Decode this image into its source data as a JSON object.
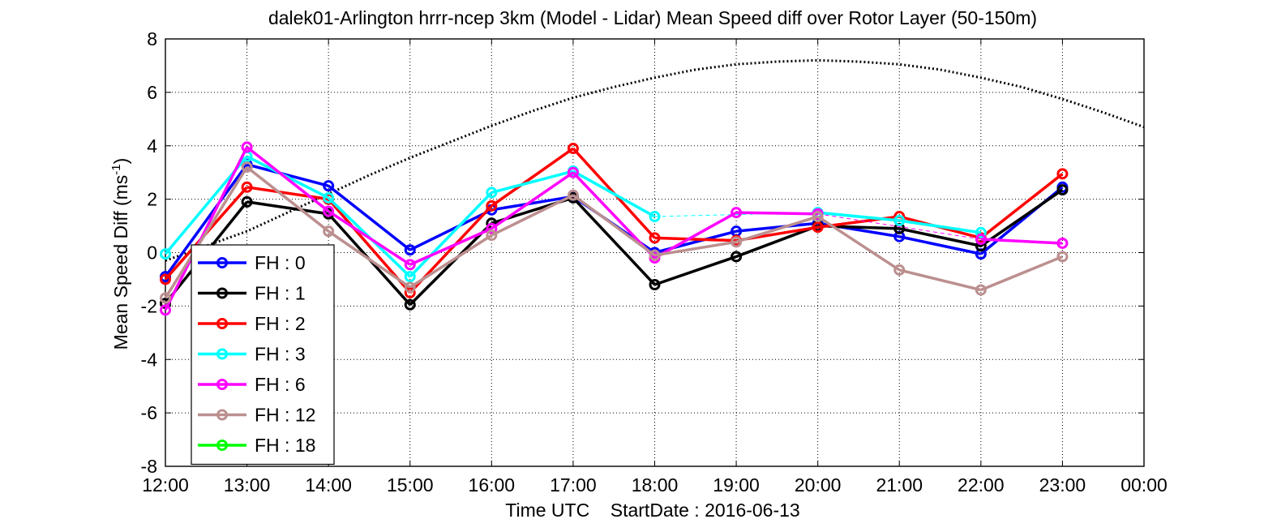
{
  "chart_data": {
    "type": "line",
    "title": "dalek01-Arlington hrrr-ncep 3km (Model - Lidar) Mean Speed diff over Rotor Layer (50-150m)",
    "xlabel": "Time UTC    StartDate : 2016-06-13",
    "ylabel": {
      "prefix": "Mean Speed Diff (ms",
      "superscript": "-1",
      "suffix": ")"
    },
    "x_ticks": [
      "12:00",
      "13:00",
      "14:00",
      "15:00",
      "16:00",
      "17:00",
      "18:00",
      "19:00",
      "20:00",
      "21:00",
      "22:00",
      "23:00",
      "00:00"
    ],
    "xlim": [
      0,
      12
    ],
    "y_ticks": [
      "8",
      "6",
      "4",
      "2",
      "0",
      "-2",
      "-4",
      "-6",
      "-8"
    ],
    "ylim": [
      -8,
      8
    ],
    "grid": true,
    "legend_position": "bottom-left",
    "series": [
      {
        "name": "FH : 0",
        "color": "#0000ff",
        "values": [
          -0.9,
          3.3,
          2.5,
          0.1,
          1.6,
          2.1,
          0.0,
          0.8,
          1.1,
          0.6,
          -0.05,
          2.45
        ]
      },
      {
        "name": "FH : 1",
        "color": "#000000",
        "values": [
          -1.9,
          1.9,
          1.45,
          -1.95,
          1.1,
          2.05,
          -1.2,
          -0.15,
          1.0,
          0.9,
          0.25,
          2.35
        ]
      },
      {
        "name": "FH : 2",
        "color": "#ff0000",
        "values": [
          -1.0,
          2.45,
          2.0,
          -1.5,
          1.75,
          3.9,
          0.55,
          0.45,
          0.95,
          1.35,
          0.55,
          2.95
        ]
      },
      {
        "name": "FH : 3",
        "color": "#00ffff",
        "values": [
          -0.05,
          3.6,
          2.05,
          -0.9,
          2.25,
          3.05,
          1.35,
          null,
          1.5,
          1.2,
          0.75,
          null
        ]
      },
      {
        "name": "FH : 6",
        "color": "#ff00ff",
        "values": [
          -2.15,
          3.95,
          1.55,
          -0.45,
          0.9,
          3.0,
          -0.2,
          1.5,
          1.45,
          null,
          0.5,
          0.35
        ]
      },
      {
        "name": "FH : 12",
        "color": "#bc8f8f",
        "values": [
          -1.7,
          3.2,
          0.8,
          -1.3,
          0.65,
          2.15,
          -0.1,
          0.4,
          1.35,
          -0.65,
          -1.4,
          -0.15
        ]
      },
      {
        "name": "FH : 18",
        "color": "#00ff00",
        "values": []
      }
    ],
    "reference_curve": {
      "color": "#000000",
      "style": "dotted",
      "x": [
        0,
        0.5,
        1,
        1.5,
        2,
        2.5,
        3,
        3.5,
        4,
        4.5,
        5,
        5.5,
        6,
        6.5,
        7,
        7.5,
        8,
        8.5,
        9,
        9.5,
        10,
        10.5,
        11,
        11.5,
        12
      ],
      "values": [
        -0.3,
        0.25,
        0.8,
        1.5,
        2.2,
        2.9,
        3.55,
        4.15,
        4.75,
        5.3,
        5.8,
        6.2,
        6.55,
        6.85,
        7.05,
        7.15,
        7.2,
        7.15,
        7.05,
        6.85,
        6.55,
        6.2,
        5.75,
        5.25,
        4.7
      ]
    }
  }
}
